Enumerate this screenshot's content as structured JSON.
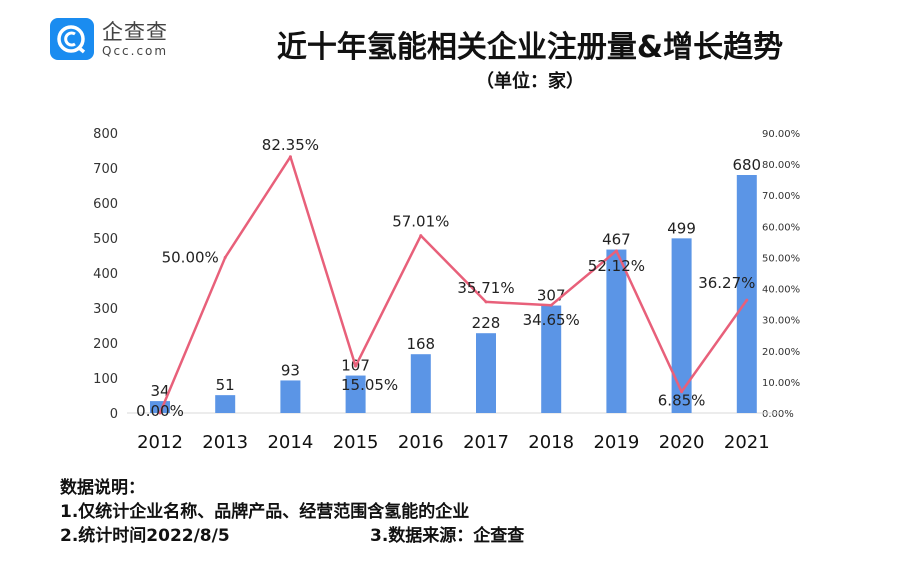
{
  "logo": {
    "name_cn": "企查查",
    "name_en": "Qcc.com",
    "color": "#1a8cf0"
  },
  "title": "近十年氢能相关企业注册量&增长趋势",
  "subtitle": "（单位：家）",
  "chart_data": {
    "type": "bar+line",
    "categories": [
      "2012",
      "2013",
      "2014",
      "2015",
      "2016",
      "2017",
      "2018",
      "2019",
      "2020",
      "2021"
    ],
    "series": [
      {
        "type": "bar",
        "axis": "left",
        "color": "#5b95e6",
        "values": [
          34,
          51,
          93,
          107,
          168,
          228,
          307,
          467,
          499,
          680
        ],
        "labels": [
          "34",
          "51",
          "93",
          "107",
          "168",
          "228",
          "307",
          "467",
          "499",
          "680"
        ]
      },
      {
        "type": "line",
        "axis": "right",
        "color": "#e8607a",
        "values": [
          0.0,
          50.0,
          82.35,
          15.05,
          57.01,
          35.71,
          34.65,
          52.12,
          6.85,
          36.27
        ],
        "labels": [
          "0.00%",
          "50.00%",
          "82.35%",
          "15.05%",
          "57.01%",
          "35.71%",
          "34.65%",
          "52.12%",
          "6.85%",
          "36.27%"
        ]
      }
    ],
    "ylim_left": [
      0,
      800
    ],
    "yticks_left": [
      "800",
      "700",
      "600",
      "500",
      "400",
      "300",
      "200",
      "100",
      "0"
    ],
    "ylim_right": [
      0,
      90
    ],
    "yticks_right": [
      "90.00%",
      "80.00%",
      "70.00%",
      "60.00%",
      "50.00%",
      "40.00%",
      "30.00%",
      "20.00%",
      "10.00%",
      "0.00%"
    ],
    "grid": false,
    "legend": "none"
  },
  "footer": {
    "heading": "数据说明：",
    "note1": "1.仅统计企业名称、品牌产品、经营范围含氢能的企业",
    "note2": "2.统计时间2022/8/5",
    "note3": "3.数据来源：企查查"
  }
}
